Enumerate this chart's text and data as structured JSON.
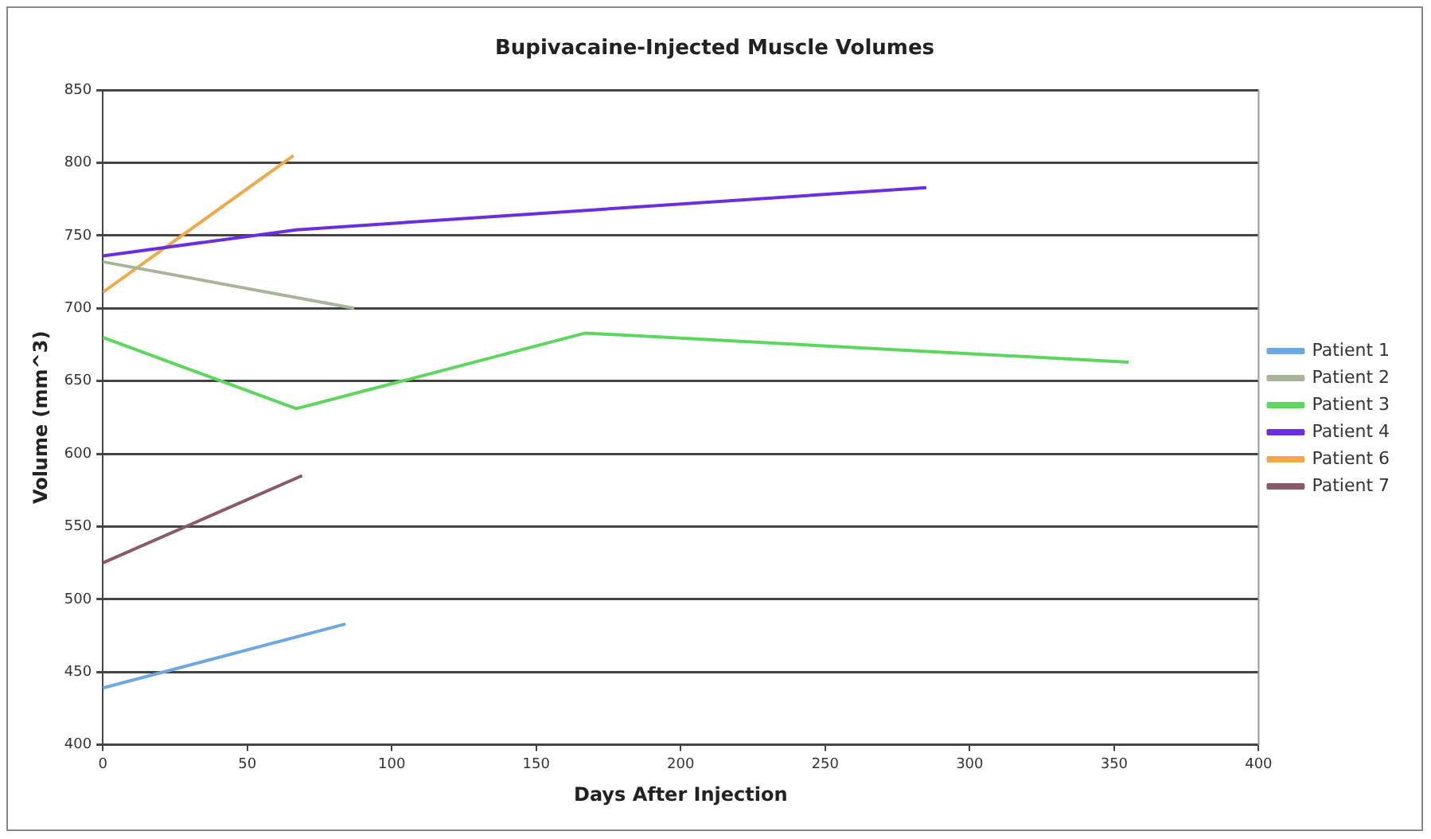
{
  "chart_data": {
    "type": "line",
    "title": "Bupivacaine-Injected Muscle Volumes",
    "xlabel": "Days After Injection",
    "ylabel": "Volume (mm^3)",
    "xlim": [
      0,
      400
    ],
    "xticks": [
      0,
      50,
      100,
      150,
      200,
      250,
      300,
      350,
      400
    ],
    "ylim": [
      400,
      850
    ],
    "yticks": [
      400,
      450,
      500,
      550,
      600,
      650,
      700,
      750,
      800,
      850
    ],
    "grid": "y",
    "legend": "right",
    "marker": "none",
    "line_style": "solid",
    "series": [
      {
        "name": "Patient 1",
        "color": "#6fa8e0",
        "x": [
          0,
          84
        ],
        "values": [
          439,
          483
        ]
      },
      {
        "name": "Patient 2",
        "color": "#a8b49a",
        "x": [
          0,
          87
        ],
        "values": [
          732,
          700
        ]
      },
      {
        "name": "Patient 3",
        "color": "#5cd65c",
        "x": [
          0,
          67,
          167,
          355
        ],
        "values": [
          680,
          631,
          683,
          663
        ]
      },
      {
        "name": "Patient 4",
        "color": "#6a2ee0",
        "x": [
          0,
          67,
          285
        ],
        "values": [
          736,
          754,
          783
        ]
      },
      {
        "name": "Patient 6",
        "color": "#f0a848",
        "x": [
          0,
          66
        ],
        "values": [
          711,
          805
        ]
      },
      {
        "name": "Patient 7",
        "color": "#8a5a68",
        "x": [
          0,
          69
        ],
        "values": [
          525,
          585
        ]
      }
    ]
  }
}
